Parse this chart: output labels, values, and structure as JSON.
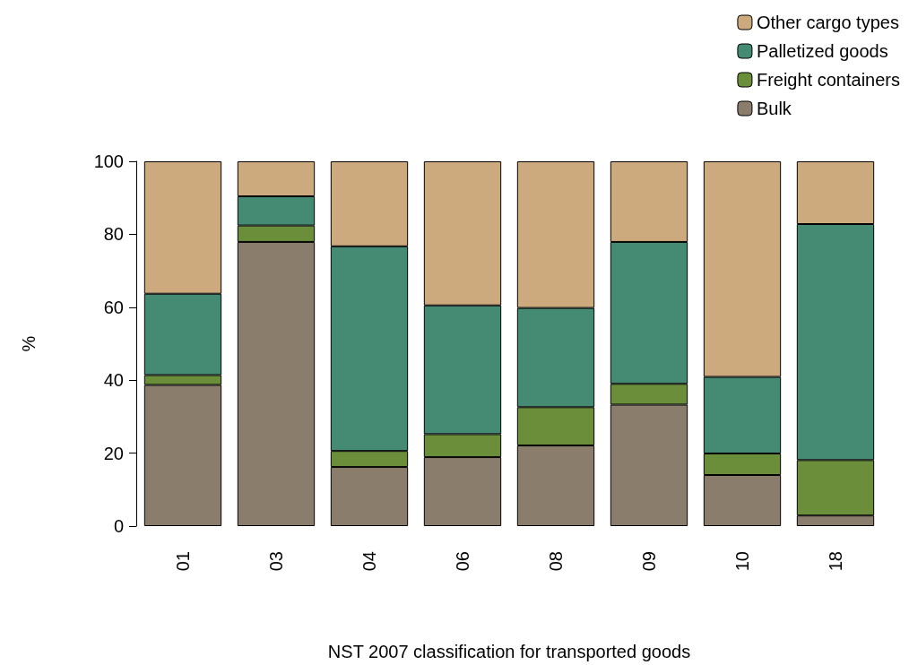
{
  "chart_data": {
    "type": "bar",
    "stacked": true,
    "xlabel": "NST 2007 classification for transported goods",
    "ylabel": "%",
    "categories": [
      "01",
      "03",
      "04",
      "06",
      "08",
      "09",
      "10",
      "18"
    ],
    "series": [
      {
        "name": "Bulk",
        "color": "#8b7d6b",
        "values": [
          38.7,
          77.9,
          16.2,
          18.9,
          22.1,
          33.3,
          14.0,
          2.9
        ]
      },
      {
        "name": "Freight containers",
        "color": "#6b8e3a",
        "values": [
          2.7,
          4.5,
          4.4,
          6.3,
          10.5,
          5.7,
          5.9,
          15.2
        ]
      },
      {
        "name": "Palletized goods",
        "color": "#458b74",
        "values": [
          22.3,
          8.0,
          56.1,
          35.3,
          27.2,
          38.9,
          21.0,
          64.7
        ]
      },
      {
        "name": "Other cargo types",
        "color": "#cdaa7d",
        "values": [
          36.3,
          9.6,
          23.3,
          39.5,
          40.2,
          22.1,
          59.1,
          17.2
        ]
      }
    ],
    "ylim": [
      0,
      100
    ],
    "yticks": [
      0,
      20,
      40,
      60,
      80,
      100
    ],
    "grid": false,
    "legend": "top right"
  }
}
